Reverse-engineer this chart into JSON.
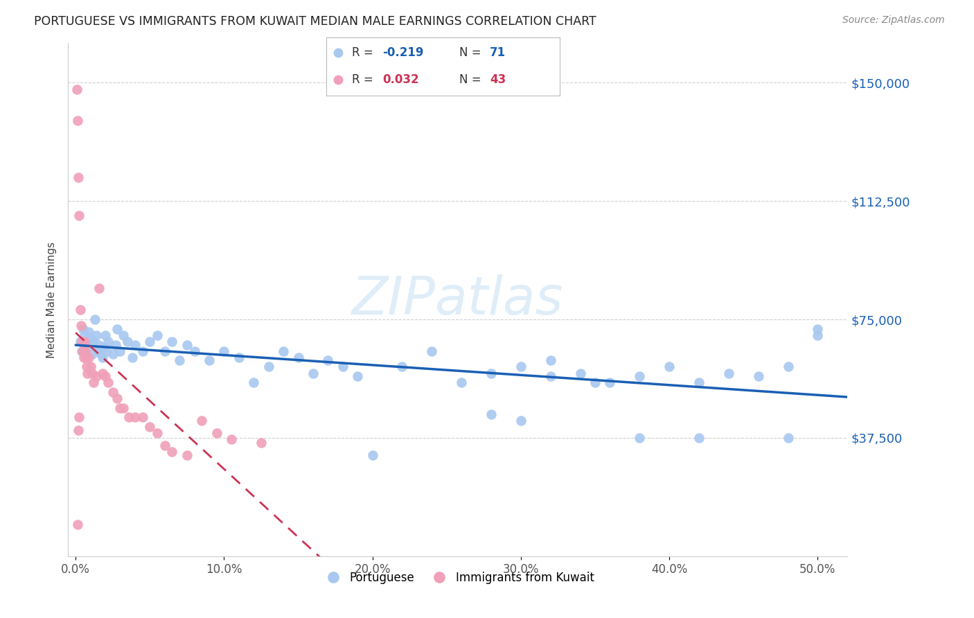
{
  "title": "PORTUGUESE VS IMMIGRANTS FROM KUWAIT MEDIAN MALE EARNINGS CORRELATION CHART",
  "source": "Source: ZipAtlas.com",
  "ylabel": "Median Male Earnings",
  "ytick_labels": [
    "$37,500",
    "$75,000",
    "$112,500",
    "$150,000"
  ],
  "ytick_values": [
    37500,
    75000,
    112500,
    150000
  ],
  "y_min": 0,
  "y_max": 162500,
  "x_min": -0.5,
  "x_max": 52,
  "watermark": "ZIPatlas",
  "blue_color": "#a8c8f0",
  "pink_color": "#f0a0b8",
  "blue_line_color": "#1a5fb4",
  "pink_line_color": "#cc3355",
  "blue_r": -0.219,
  "blue_n": 71,
  "pink_r": 0.032,
  "pink_n": 43,
  "blue_x": [
    0.3,
    0.4,
    0.5,
    0.6,
    0.7,
    0.8,
    0.9,
    1.0,
    1.1,
    1.2,
    1.3,
    1.4,
    1.5,
    1.6,
    1.7,
    1.8,
    1.9,
    2.0,
    2.1,
    2.2,
    2.5,
    2.7,
    2.8,
    3.0,
    3.2,
    3.5,
    3.8,
    4.0,
    4.5,
    5.0,
    5.5,
    6.0,
    6.5,
    7.0,
    7.5,
    8.0,
    9.0,
    10.0,
    11.0,
    12.0,
    13.0,
    14.0,
    15.0,
    16.0,
    17.0,
    18.0,
    19.0,
    20.0,
    22.0,
    24.0,
    26.0,
    28.0,
    30.0,
    32.0,
    34.0,
    36.0,
    38.0,
    40.0,
    42.0,
    44.0,
    46.0,
    48.0,
    50.0,
    28.0,
    30.0,
    32.0,
    35.0,
    38.0,
    42.0,
    48.0,
    50.0
  ],
  "blue_y": [
    68000,
    65000,
    72000,
    70000,
    67000,
    66000,
    71000,
    69000,
    64000,
    68000,
    75000,
    70000,
    65000,
    67000,
    64000,
    63000,
    66000,
    70000,
    65000,
    68000,
    64000,
    67000,
    72000,
    65000,
    70000,
    68000,
    63000,
    67000,
    65000,
    68000,
    70000,
    65000,
    68000,
    62000,
    67000,
    65000,
    62000,
    65000,
    63000,
    55000,
    60000,
    65000,
    63000,
    58000,
    62000,
    60000,
    57000,
    32000,
    60000,
    65000,
    55000,
    58000,
    60000,
    62000,
    58000,
    55000,
    57000,
    60000,
    55000,
    58000,
    57000,
    60000,
    70000,
    45000,
    43000,
    57000,
    55000,
    37500,
    37500,
    37500,
    72000
  ],
  "pink_x": [
    0.1,
    0.15,
    0.2,
    0.25,
    0.3,
    0.35,
    0.4,
    0.45,
    0.5,
    0.55,
    0.6,
    0.65,
    0.7,
    0.75,
    0.8,
    0.9,
    1.0,
    1.1,
    1.2,
    1.4,
    1.6,
    1.8,
    2.0,
    2.2,
    2.5,
    2.8,
    3.0,
    3.2,
    3.6,
    4.0,
    4.5,
    5.0,
    5.5,
    6.0,
    6.5,
    7.5,
    8.5,
    9.5,
    10.5,
    12.5,
    0.25,
    0.2,
    0.15
  ],
  "pink_y": [
    148000,
    138000,
    120000,
    108000,
    78000,
    73000,
    68000,
    65000,
    65000,
    63000,
    68000,
    65000,
    63000,
    60000,
    58000,
    63000,
    60000,
    58000,
    55000,
    57000,
    85000,
    58000,
    57000,
    55000,
    52000,
    50000,
    47000,
    47000,
    44000,
    44000,
    44000,
    41000,
    39000,
    35000,
    33000,
    32000,
    43000,
    39000,
    37000,
    36000,
    44000,
    40000,
    10000
  ]
}
